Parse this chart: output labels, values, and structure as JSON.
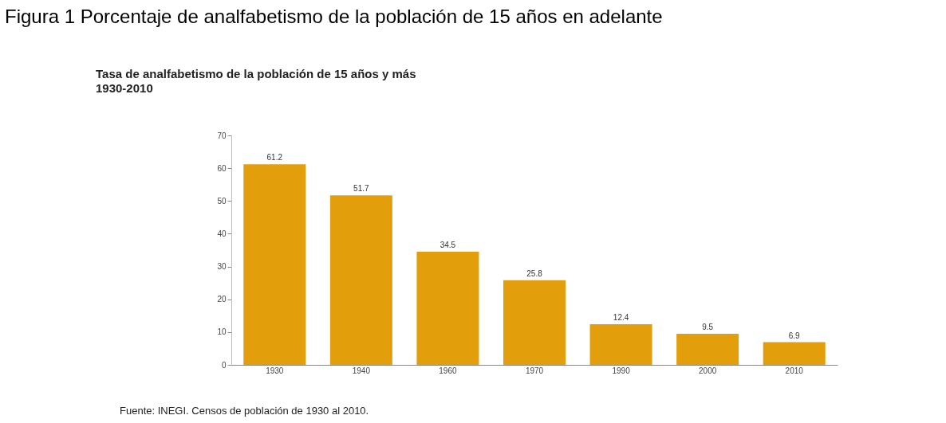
{
  "chart_data": {
    "type": "bar",
    "title": "Figura 1 Porcentaje de analfabetismo de la población de 15 años en adelante",
    "subtitle": "Tasa de analfabetismo  de la población de 15 años y más\n1930-2010",
    "categories": [
      "1930",
      "1940",
      "1960",
      "1970",
      "1990",
      "2000",
      "2010"
    ],
    "values": [
      61.2,
      51.7,
      34.5,
      25.8,
      12.4,
      9.5,
      6.9
    ],
    "color": "#e39e0b",
    "ylim": [
      0,
      70
    ],
    "yticks": [
      0,
      10,
      20,
      30,
      40,
      50,
      60,
      70
    ],
    "grid": false,
    "data_labels": true,
    "annotations": [
      "Fuente: INEGI. Censos de población de 1930 al 2010."
    ]
  }
}
